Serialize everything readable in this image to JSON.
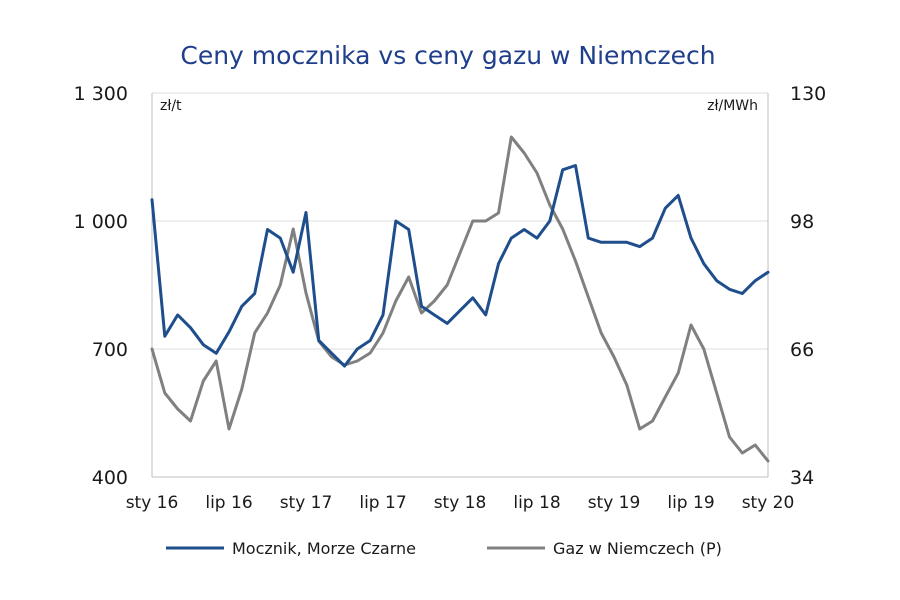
{
  "chart_data": {
    "type": "line",
    "title": "Ceny mocznika vs ceny gazu w Niemczech",
    "y_left": {
      "unit": "zł/t",
      "range": [
        400,
        1300
      ],
      "ticks": [
        "1 300",
        "1 000",
        "700",
        "400"
      ]
    },
    "y_right": {
      "unit": "zł/MWh",
      "range": [
        34,
        130
      ],
      "ticks": [
        "130",
        "98",
        "66",
        "34"
      ]
    },
    "x_ticks": [
      "sty 16",
      "lip 16",
      "sty 17",
      "lip 17",
      "sty 18",
      "lip 18",
      "sty 19",
      "lip 19",
      "sty 20"
    ],
    "x_start": "2016-01",
    "x_step": "month",
    "grid": "horizontal",
    "legend_position": "bottom",
    "series": [
      {
        "name": "Mocznik, Morze Czarne",
        "axis": "left",
        "color": "#1f4e8c",
        "values": [
          1050,
          730,
          780,
          750,
          710,
          690,
          740,
          800,
          830,
          980,
          960,
          880,
          1020,
          720,
          690,
          660,
          700,
          720,
          780,
          1000,
          980,
          800,
          780,
          760,
          790,
          820,
          780,
          900,
          960,
          980,
          960,
          1000,
          1120,
          1130,
          960,
          950,
          950,
          950,
          940,
          960,
          1030,
          1060,
          960,
          900,
          860,
          840,
          830,
          860,
          880
        ]
      },
      {
        "name": "Gaz w Niemczech (P)",
        "axis": "right",
        "color": "#808080",
        "values": [
          66,
          55,
          51,
          48,
          58,
          63,
          46,
          56,
          70,
          75,
          82,
          96,
          80,
          68,
          64,
          62,
          63,
          65,
          70,
          78,
          84,
          75,
          78,
          82,
          90,
          98,
          98,
          100,
          119,
          115,
          110,
          102,
          96,
          88,
          79,
          70,
          64,
          57,
          46,
          48,
          54,
          60,
          72,
          66,
          55,
          44,
          40,
          42,
          38
        ]
      }
    ]
  },
  "legend": {
    "items": [
      {
        "label": "Mocznik, Morze Czarne",
        "color": "#1f4e8c"
      },
      {
        "label": "Gaz w Niemczech (P)",
        "color": "#808080"
      }
    ]
  }
}
